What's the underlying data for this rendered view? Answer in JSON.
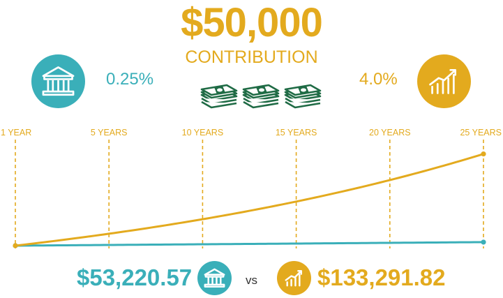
{
  "header": {
    "amount": "$50,000",
    "label": "CONTRIBUTION"
  },
  "rates": {
    "bank": "0.25%",
    "invest": "4.0%"
  },
  "results": {
    "bank": "$53,220.57",
    "vs": "vs",
    "invest": "$133,291.82"
  },
  "icons": {
    "bank": "bank-icon",
    "growth": "growth-chart-icon",
    "money": "cash-stack-icon"
  },
  "colors": {
    "teal": "#3aafb9",
    "gold": "#e3aa1e",
    "money_green": "#1f6b45"
  },
  "chart_data": {
    "type": "line",
    "tick_labels": [
      "1 YEAR",
      "5 YEARS",
      "10 YEARS",
      "15 YEARS",
      "20 YEARS",
      "25 YEARS"
    ],
    "tick_years": [
      0,
      5,
      10,
      15,
      20,
      25
    ],
    "xlim": [
      0,
      25
    ],
    "principal": 50000,
    "ylim": [
      50000,
      140000
    ],
    "grid": "vertical-dashed",
    "series": [
      {
        "key": "bank",
        "color": "#3aafb9",
        "rate": 0.0025,
        "end_value": 53220.57,
        "points": [
          [
            0,
            50000
          ],
          [
            5,
            50630
          ],
          [
            10,
            51266
          ],
          [
            15,
            51911
          ],
          [
            20,
            52563
          ],
          [
            25,
            53220.57
          ]
        ]
      },
      {
        "key": "invest",
        "color": "#e3aa1e",
        "rate": 0.04,
        "end_value": 133291.82,
        "points": [
          [
            0,
            50000
          ],
          [
            5,
            60833
          ],
          [
            10,
            74012
          ],
          [
            15,
            90047
          ],
          [
            20,
            109556
          ],
          [
            25,
            133291.82
          ]
        ]
      }
    ]
  }
}
